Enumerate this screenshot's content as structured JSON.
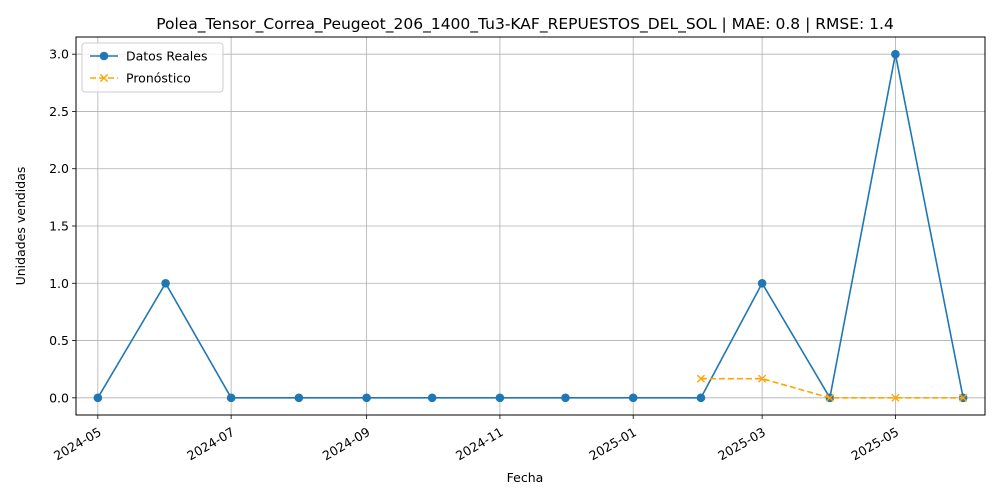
{
  "chart_data": {
    "type": "line",
    "title": "Polea_Tensor_Correa_Peugeot_206_1400_Tu3-KAF_REPUESTOS_DEL_SOL | MAE: 0.8 | RMSE: 1.4",
    "xlabel": "Fecha",
    "ylabel": "Unidades vendidas",
    "x_ticks": [
      "2024-05",
      "2024-07",
      "2024-09",
      "2024-11",
      "2025-01",
      "2025-03",
      "2025-05"
    ],
    "y_ticks": [
      "0.0",
      "0.5",
      "1.0",
      "1.5",
      "2.0",
      "2.5",
      "3.0"
    ],
    "ylim": [
      -0.15,
      3.15
    ],
    "xlim": [
      "2024-04-21",
      "2025-06-11"
    ],
    "grid": true,
    "legend_position": "upper-left",
    "series": [
      {
        "name": "Datos Reales",
        "color": "#1f77b4",
        "linestyle": "solid",
        "marker": "circle",
        "x": [
          "2024-05-01",
          "2024-06-01",
          "2024-07-01",
          "2024-08-01",
          "2024-09-01",
          "2024-10-01",
          "2024-11-01",
          "2024-12-01",
          "2025-01-01",
          "2025-02-01",
          "2025-03-01",
          "2025-04-01",
          "2025-05-01",
          "2025-06-01"
        ],
        "values": [
          0,
          1,
          0,
          0,
          0,
          0,
          0,
          0,
          0,
          0,
          1,
          0,
          3,
          0
        ]
      },
      {
        "name": "Pronóstico",
        "color": "#ffa500",
        "linestyle": "dashed",
        "marker": "x",
        "x": [
          "2025-02-01",
          "2025-03-01",
          "2025-04-01",
          "2025-05-01",
          "2025-06-01"
        ],
        "values": [
          0.167,
          0.167,
          0,
          0,
          0
        ]
      }
    ]
  }
}
